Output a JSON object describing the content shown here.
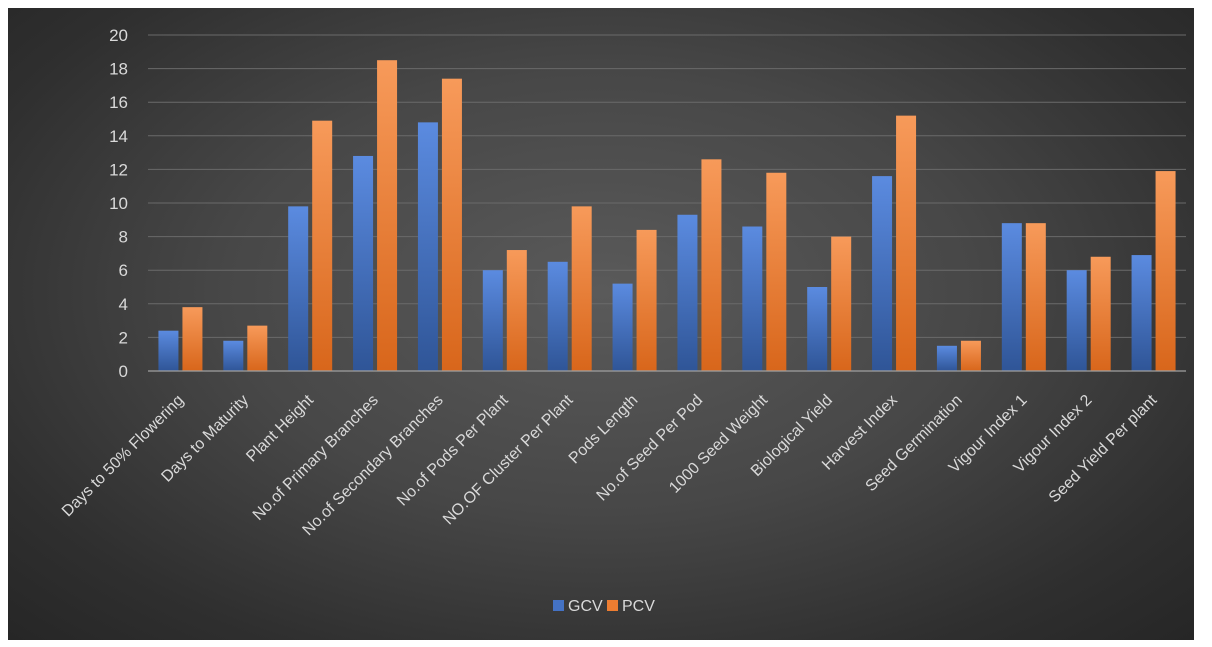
{
  "chart_data": {
    "type": "bar",
    "categories": [
      "Days to 50% Flowering",
      "Days to Maturity",
      "Plant Height",
      "No.of Primary Branches",
      "No.of Secondary Branches",
      "No.of Pods Per Plant",
      "NO.OF Cluster Per Plant",
      "Pods Length",
      "No.of Seed Per Pod",
      "1000 Seed Weight",
      "Biological Yield",
      "Harvest Index",
      "Seed Germination",
      "Vigour Index  1",
      "Vigour Index 2",
      "Seed Yield Per plant"
    ],
    "series": [
      {
        "name": "GCV",
        "color": "#4472c4",
        "values": [
          2.4,
          1.8,
          9.8,
          12.8,
          14.8,
          6.0,
          6.5,
          5.2,
          9.3,
          8.6,
          5.0,
          11.6,
          1.5,
          8.8,
          6.0,
          6.9
        ]
      },
      {
        "name": "PCV",
        "color": "#ed7d31",
        "values": [
          3.8,
          2.7,
          14.9,
          18.5,
          17.4,
          7.2,
          9.8,
          8.4,
          12.6,
          11.8,
          8.0,
          15.2,
          1.8,
          8.8,
          6.8,
          11.9
        ]
      }
    ],
    "yticks": [
      "0",
      "2",
      "4",
      "6",
      "8",
      "10",
      "12",
      "14",
      "16",
      "18",
      "20"
    ],
    "ylim": [
      0,
      20
    ],
    "grid": true,
    "legend_position": "bottom"
  }
}
